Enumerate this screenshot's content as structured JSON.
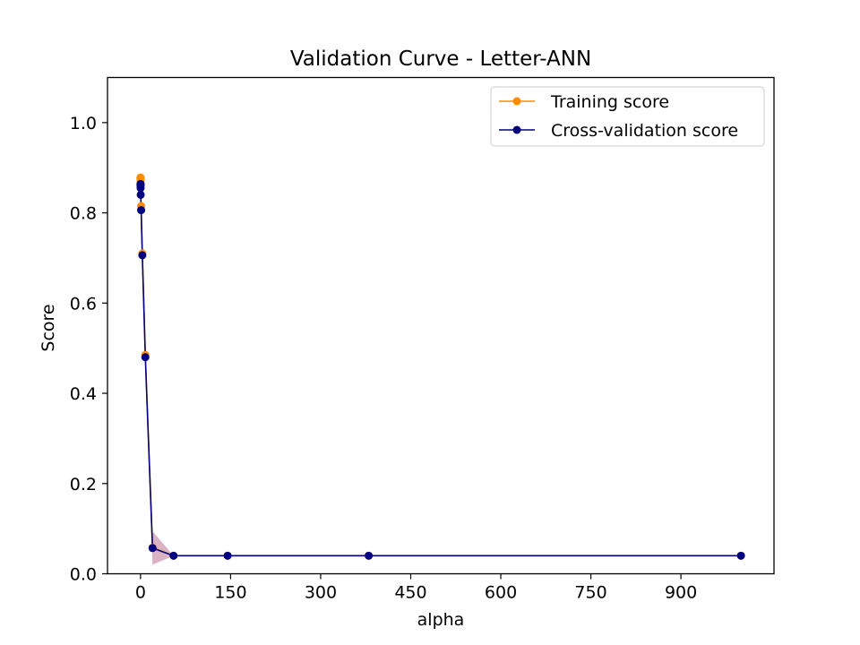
{
  "chart_data": {
    "type": "line",
    "title": "Validation Curve - Letter-ANN",
    "xlabel": "alpha",
    "ylabel": "Score",
    "xlim": [
      -55,
      1055
    ],
    "ylim": [
      0.0,
      1.1
    ],
    "xticks": [
      0,
      150,
      300,
      450,
      600,
      750,
      900
    ],
    "xtick_labels": [
      "0",
      "150",
      "300",
      "450",
      "600",
      "750",
      "900"
    ],
    "yticks": [
      0.0,
      0.2,
      0.4,
      0.6,
      0.8,
      1.0
    ],
    "ytick_labels": [
      "0.0",
      "0.2",
      "0.4",
      "0.6",
      "0.8",
      "1.0"
    ],
    "grid": false,
    "legend": "top-right",
    "x": [
      0.001,
      0.003,
      0.01,
      0.03,
      0.1,
      0.3,
      1,
      3,
      8,
      20,
      55,
      145,
      380,
      1000
    ],
    "series": [
      {
        "name": "Training score",
        "color": "#ff8c00",
        "values": [
          0.878,
          0.878,
          0.877,
          0.876,
          0.872,
          0.864,
          0.815,
          0.71,
          0.485,
          0.058,
          0.04,
          0.04,
          0.04,
          0.04
        ],
        "band_lower": [
          0.876,
          0.876,
          0.875,
          0.874,
          0.87,
          0.862,
          0.812,
          0.706,
          0.48,
          0.055,
          0.04,
          0.04,
          0.04,
          0.04
        ],
        "band_upper": [
          0.88,
          0.88,
          0.879,
          0.878,
          0.874,
          0.866,
          0.818,
          0.714,
          0.49,
          0.061,
          0.04,
          0.04,
          0.04,
          0.04
        ],
        "band_color": "#ff8c00"
      },
      {
        "name": "Cross-validation score",
        "color": "#000080",
        "values": [
          0.864,
          0.863,
          0.862,
          0.86,
          0.855,
          0.84,
          0.806,
          0.706,
          0.48,
          0.057,
          0.04,
          0.04,
          0.04,
          0.04
        ],
        "band_lower": [
          0.858,
          0.857,
          0.856,
          0.854,
          0.849,
          0.833,
          0.798,
          0.696,
          0.46,
          0.02,
          0.04,
          0.04,
          0.04,
          0.04
        ],
        "band_upper": [
          0.87,
          0.869,
          0.868,
          0.866,
          0.861,
          0.847,
          0.814,
          0.716,
          0.5,
          0.094,
          0.04,
          0.04,
          0.04,
          0.04
        ],
        "band_color": "#80003a"
      }
    ]
  }
}
